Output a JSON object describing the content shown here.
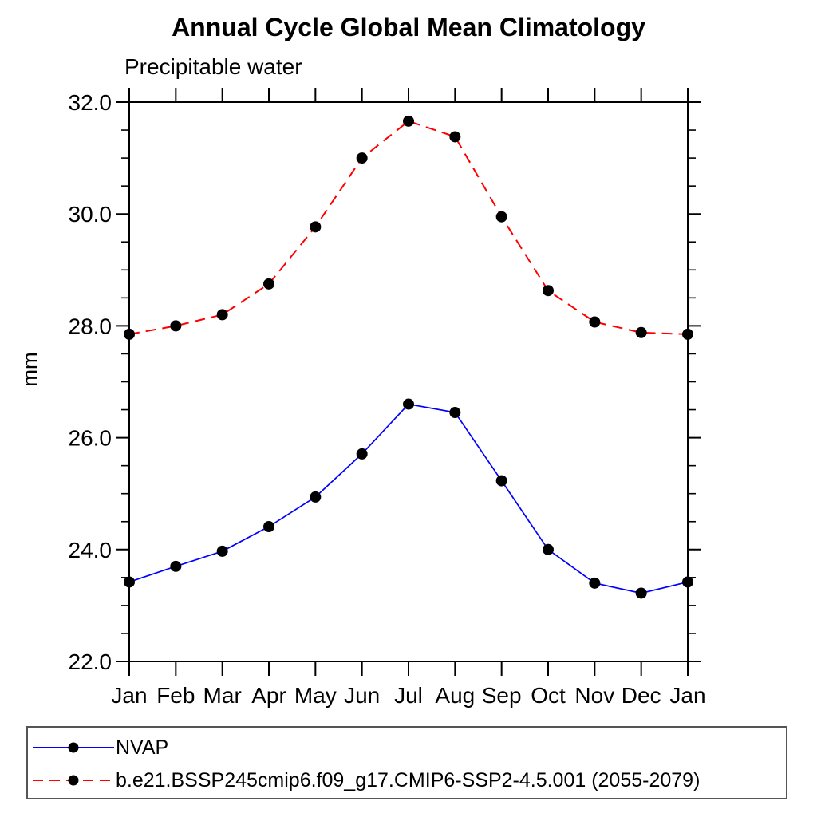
{
  "title": "Annual Cycle Global Mean Climatology",
  "subtitle": "Precipitable water",
  "y_axis_label": "mm",
  "colors": {
    "axis": "#000000",
    "marker": "#000000",
    "nvap_line": "#0000ff",
    "model_line": "#ff0000",
    "legend_border": "#555555"
  },
  "chart_data": {
    "type": "line",
    "title": "Annual Cycle Global Mean Climatology",
    "subtitle": "Precipitable water",
    "xlabel": "",
    "ylabel": "mm",
    "categories": [
      "Jan",
      "Feb",
      "Mar",
      "Apr",
      "May",
      "Jun",
      "Jul",
      "Aug",
      "Sep",
      "Oct",
      "Nov",
      "Dec",
      "Jan"
    ],
    "ylim": [
      22.0,
      32.0
    ],
    "ytick_major_values": [
      22.0,
      24.0,
      26.0,
      28.0,
      30.0,
      32.0
    ],
    "ytick_major_labels": [
      "22.0",
      "24.0",
      "26.0",
      "28.0",
      "30.0",
      "32.0"
    ],
    "ytick_minor_step": 0.5,
    "grid": false,
    "legend_position": "bottom",
    "series": [
      {
        "name": "NVAP",
        "color": "#0000ff",
        "line_style": "solid",
        "marker": "filled-circle",
        "marker_color": "#000000",
        "values": [
          23.42,
          23.7,
          23.97,
          24.41,
          24.94,
          25.71,
          26.6,
          26.45,
          25.23,
          24.0,
          23.4,
          23.22,
          23.42
        ]
      },
      {
        "name": "b.e21.BSSP245cmip6.f09_g17.CMIP6-SSP2-4.5.001 (2055-2079)",
        "color": "#ff0000",
        "line_style": "dashed",
        "marker": "filled-circle",
        "marker_color": "#000000",
        "values": [
          27.85,
          28.0,
          28.2,
          28.75,
          29.77,
          31.0,
          31.66,
          31.38,
          29.95,
          28.63,
          28.07,
          27.88,
          27.85
        ]
      }
    ]
  }
}
